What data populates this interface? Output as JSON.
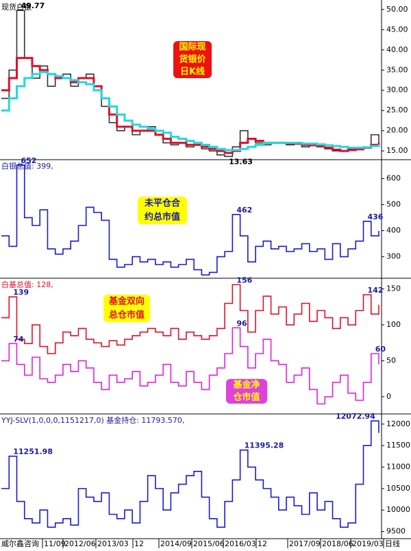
{
  "chart_data": [
    {
      "type": "line",
      "title": "现货白银",
      "title_color": "#000000",
      "ylim": [
        13,
        52
      ],
      "yticks": [
        {
          "value": 15,
          "label": "15.00"
        },
        {
          "value": 20,
          "label": "20.00"
        },
        {
          "value": 25,
          "label": "25.00"
        },
        {
          "value": 30,
          "label": "30.00"
        },
        {
          "value": 35,
          "label": "35.00"
        },
        {
          "value": 40,
          "label": "40.00"
        },
        {
          "value": 45,
          "label": "45.00"
        },
        {
          "value": 50,
          "label": "50.00"
        }
      ],
      "series": [
        {
          "color": "#333333",
          "values": [
            28,
            35,
            49.77,
            38,
            33,
            36,
            31,
            33,
            34,
            31,
            33,
            34,
            30,
            26,
            22,
            20,
            21,
            19,
            20,
            21,
            19,
            17,
            16.5,
            17,
            16,
            16.5,
            15.5,
            15,
            14,
            13.63,
            16,
            20,
            18,
            17,
            16.5,
            17,
            17,
            16.5,
            17,
            16,
            16.5,
            16,
            15.5,
            15,
            15,
            15.5,
            15.5,
            16,
            19,
            17
          ],
          "value_labels": [
            null,
            null,
            "49.77",
            null,
            null,
            null,
            null,
            null,
            null,
            null,
            null,
            null,
            null,
            null,
            null,
            null,
            null,
            null,
            null,
            null,
            null,
            null,
            null,
            null,
            null,
            null,
            null,
            null,
            null,
            "13.63",
            null,
            null,
            null,
            null,
            null,
            null,
            null,
            null,
            null,
            null,
            null,
            null,
            null,
            null,
            null,
            null,
            null,
            null,
            null,
            null
          ]
        },
        {
          "color": "#e0102a",
          "values": [
            30,
            33,
            38,
            38,
            36,
            35,
            34,
            33,
            33,
            32,
            33,
            33,
            31,
            28,
            24,
            21,
            21,
            20,
            20,
            20,
            19,
            18,
            17,
            17,
            16.5,
            16.5,
            16,
            15.5,
            15,
            14.5,
            15,
            17,
            18,
            17.5,
            17,
            17,
            17,
            16.8,
            16.8,
            16.5,
            16.4,
            16.2,
            15.8,
            15.3,
            15,
            15.2,
            15.4,
            15.8,
            16.5,
            17
          ]
        },
        {
          "color": "#22d8e0",
          "values": [
            25,
            28,
            31,
            33,
            34,
            34.5,
            34,
            33.5,
            33,
            32.5,
            32,
            31.5,
            30,
            28,
            26,
            24,
            22.5,
            21.5,
            21,
            20.5,
            20,
            19.5,
            18.5,
            18,
            17.5,
            17,
            16.5,
            16,
            15.5,
            15.2,
            15.2,
            15.5,
            16,
            16.5,
            17,
            17,
            17,
            17,
            17,
            16.8,
            16.8,
            16.6,
            16.4,
            16.2,
            16,
            15.8,
            15.8,
            15.9,
            16.2,
            16.6
          ]
        }
      ],
      "annotations": [
        {
          "lines": [
            "国际现",
            "货银价",
            "日K线"
          ],
          "background": "#ee1111",
          "color": "#ffff00"
        }
      ]
    },
    {
      "type": "line",
      "title": "白银总值: 399,",
      "title_color": "#1a1aa0",
      "ylim": [
        220,
        670
      ],
      "yticks": [
        300,
        400,
        500,
        600
      ],
      "series": [
        {
          "color": "#1a1ad0",
          "values": [
            380,
            340,
            652,
            450,
            420,
            480,
            330,
            310,
            330,
            360,
            420,
            490,
            470,
            440,
            290,
            260,
            270,
            300,
            280,
            290,
            270,
            280,
            260,
            270,
            290,
            250,
            230,
            240,
            300,
            320,
            462,
            380,
            280,
            340,
            360,
            330,
            340,
            320,
            330,
            350,
            320,
            330,
            290,
            350,
            300,
            330,
            360,
            436,
            380,
            399
          ],
          "value_labels": [
            null,
            null,
            "652",
            null,
            null,
            null,
            null,
            null,
            null,
            null,
            null,
            null,
            null,
            null,
            null,
            null,
            null,
            null,
            null,
            null,
            null,
            null,
            null,
            null,
            null,
            null,
            null,
            null,
            null,
            null,
            "462",
            null,
            null,
            null,
            null,
            null,
            null,
            null,
            null,
            null,
            null,
            null,
            null,
            null,
            null,
            null,
            null,
            "436",
            null,
            null
          ]
        }
      ],
      "annotations": [
        {
          "lines": [
            "未平仓合",
            "约总市值"
          ],
          "background": "#ffff00",
          "color": "#1a1aa0"
        }
      ]
    },
    {
      "type": "line",
      "title": "白基总值: 128,",
      "title_color": "#e0102a",
      "ylim": [
        -23,
        164
      ],
      "yticks": [
        0,
        50,
        100,
        150
      ],
      "series": [
        {
          "color": "#e0102a",
          "values": [
            110,
            139,
            80,
            74,
            100,
            70,
            60,
            75,
            90,
            85,
            95,
            80,
            75,
            70,
            78,
            72,
            80,
            85,
            90,
            95,
            90,
            85,
            95,
            80,
            90,
            85,
            80,
            85,
            95,
            130,
            156,
            120,
            90,
            120,
            140,
            115,
            125,
            100,
            115,
            130,
            105,
            120,
            110,
            95,
            110,
            100,
            120,
            142,
            115,
            128
          ],
          "value_labels": [
            null,
            "139",
            null,
            null,
            null,
            null,
            null,
            null,
            null,
            null,
            null,
            null,
            null,
            null,
            null,
            null,
            null,
            null,
            null,
            null,
            null,
            null,
            null,
            null,
            null,
            null,
            null,
            null,
            null,
            null,
            "156",
            null,
            null,
            null,
            null,
            null,
            null,
            null,
            null,
            null,
            null,
            null,
            null,
            null,
            null,
            null,
            null,
            "142",
            null,
            null
          ]
        },
        {
          "color": "#e020e0",
          "values": [
            50,
            74,
            45,
            30,
            55,
            25,
            20,
            30,
            45,
            35,
            50,
            40,
            20,
            10,
            30,
            20,
            25,
            35,
            15,
            20,
            30,
            45,
            20,
            15,
            35,
            20,
            10,
            30,
            40,
            60,
            96,
            70,
            40,
            60,
            80,
            50,
            45,
            20,
            30,
            40,
            10,
            -10,
            0,
            20,
            30,
            5,
            -5,
            20,
            60,
            45
          ],
          "value_labels": [
            null,
            "74",
            null,
            null,
            null,
            null,
            null,
            null,
            null,
            null,
            null,
            null,
            null,
            null,
            null,
            null,
            null,
            null,
            null,
            null,
            null,
            null,
            null,
            null,
            null,
            null,
            null,
            null,
            null,
            null,
            "96",
            null,
            null,
            null,
            null,
            null,
            null,
            null,
            null,
            null,
            null,
            null,
            null,
            null,
            null,
            null,
            null,
            null,
            "60",
            null
          ]
        }
      ],
      "annotations": [
        {
          "lines": [
            "基金双向",
            "总仓市值"
          ],
          "background": "#ffff00",
          "color": "#e0102a"
        },
        {
          "lines": [
            "基金净",
            "仓市值"
          ],
          "background": "#e040e0",
          "color": "#ffff00"
        }
      ]
    },
    {
      "type": "line",
      "title": "YYJ-SLV(1,0,0,0,1151217,0) 基金持仓: 11793.570,",
      "title_color": "#1a1aa0",
      "ylim": [
        9350,
        12220
      ],
      "yticks": [
        9500,
        10000,
        10500,
        11000,
        11500,
        12000
      ],
      "series": [
        {
          "color": "#1a1ad0",
          "values": [
            10500,
            11251.98,
            10200,
            9800,
            9700,
            10000,
            9600,
            9700,
            9800,
            9650,
            10500,
            10300,
            10200,
            10400,
            9900,
            9800,
            10000,
            9700,
            10200,
            10800,
            10500,
            10000,
            10400,
            10600,
            10800,
            10900,
            10300,
            9800,
            9600,
            10200,
            10700,
            11395.28,
            11000,
            10700,
            10500,
            10300,
            10000,
            10300,
            10100,
            9900,
            10400,
            10000,
            10200,
            9800,
            9600,
            9700,
            10600,
            11500,
            12072.94,
            11793.57
          ],
          "value_labels": [
            null,
            "11251.98",
            null,
            null,
            null,
            null,
            null,
            null,
            null,
            null,
            null,
            null,
            null,
            null,
            null,
            null,
            null,
            null,
            null,
            null,
            null,
            null,
            null,
            null,
            null,
            null,
            null,
            null,
            null,
            null,
            null,
            "11395.28",
            null,
            null,
            null,
            null,
            null,
            null,
            null,
            null,
            null,
            null,
            null,
            null,
            null,
            null,
            null,
            null,
            "12072.94",
            null
          ]
        }
      ],
      "annotations": []
    }
  ],
  "x_axis_labels": [
    "威尔鑫咨询",
    "11/09",
    "2012/06",
    "2013/03",
    "12",
    "2014/09",
    "2015/06",
    "2016/03",
    "12",
    "2017/09",
    "2018/06",
    "2019/03",
    "日线"
  ]
}
